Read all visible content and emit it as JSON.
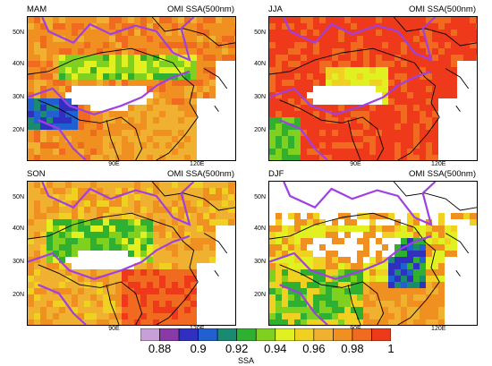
{
  "product_label": "OMI SSA(500nm)",
  "panels": [
    {
      "season": "MAM"
    },
    {
      "season": "JJA"
    },
    {
      "season": "SON"
    },
    {
      "season": "DJF"
    }
  ],
  "axis": {
    "lat_ticks": [
      "50N",
      "40N",
      "30N",
      "20N"
    ],
    "lon_ticks": [
      "90E",
      "120E"
    ]
  },
  "colorbar": {
    "title": "SSA",
    "tick_labels": [
      "0.88",
      "0.9",
      "0.92",
      "0.94",
      "0.96",
      "0.98",
      "1"
    ],
    "colors": [
      "#c8a0d8",
      "#8a3aa8",
      "#3030c0",
      "#2060d0",
      "#1a8a70",
      "#30b030",
      "#80d020",
      "#e0f020",
      "#f0d020",
      "#f0b030",
      "#f09020",
      "#f06a20",
      "#ee3a1a"
    ]
  },
  "colors": {
    "boundary": "#a040e0",
    "coast": "#000000",
    "no_data": "#ffffff"
  }
}
